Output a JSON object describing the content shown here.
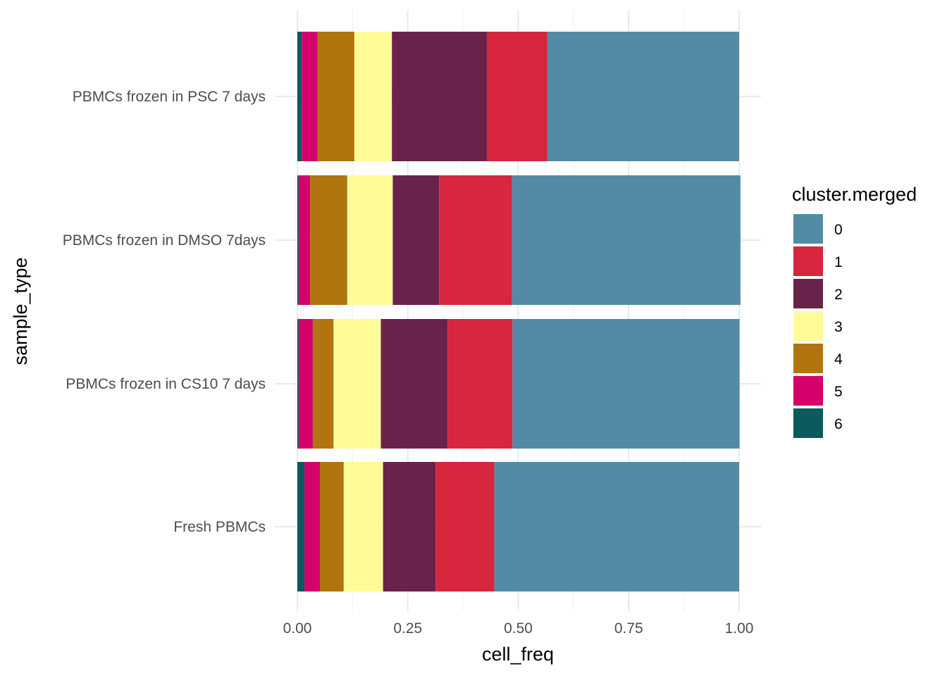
{
  "chart_data": {
    "type": "bar",
    "orientation": "horizontal",
    "stacked": true,
    "xlabel": "cell_freq",
    "ylabel": "sample_type",
    "xlim": [
      0,
      1
    ],
    "x_ticks": [
      "0.00",
      "0.25",
      "0.50",
      "0.75",
      "1.00"
    ],
    "x_tick_values": [
      0,
      0.25,
      0.5,
      0.75,
      1.0
    ],
    "grid": true,
    "legend_position": "right",
    "legend_title": "cluster.merged",
    "categories": [
      "PBMCs frozen in PSC 7 days",
      "PBMCs frozen in DMSO 7days",
      "PBMCs frozen in CS10 7 days",
      "Fresh PBMCs"
    ],
    "series": [
      {
        "name": "0",
        "color": "#538BA6",
        "values": [
          0.434,
          0.517,
          0.514,
          0.554
        ]
      },
      {
        "name": "1",
        "color": "#D7263D",
        "values": [
          0.137,
          0.165,
          0.147,
          0.133
        ]
      },
      {
        "name": "2",
        "color": "#69234A",
        "values": [
          0.215,
          0.105,
          0.151,
          0.119
        ]
      },
      {
        "name": "3",
        "color": "#FFFC97",
        "values": [
          0.085,
          0.103,
          0.107,
          0.089
        ]
      },
      {
        "name": "4",
        "color": "#B1740F",
        "values": [
          0.083,
          0.084,
          0.047,
          0.054
        ]
      },
      {
        "name": "5",
        "color": "#D5006B",
        "values": [
          0.036,
          0.026,
          0.032,
          0.035
        ]
      },
      {
        "name": "6",
        "color": "#0B5A5C",
        "values": [
          0.01,
          0.003,
          0.003,
          0.016
        ]
      }
    ],
    "stack_order_from_zero": [
      "6",
      "5",
      "4",
      "3",
      "2",
      "1",
      "0"
    ]
  }
}
